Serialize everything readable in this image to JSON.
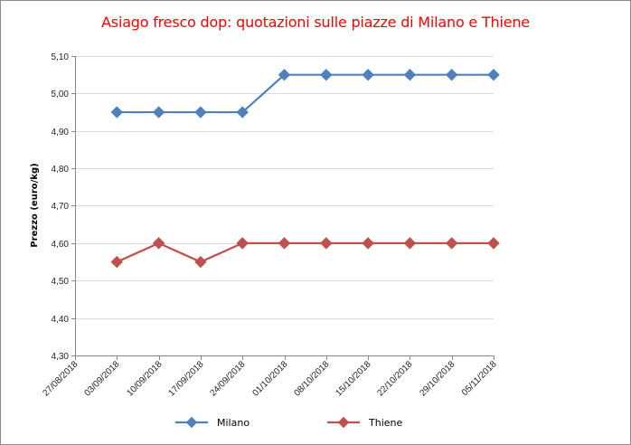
{
  "chart_data": {
    "type": "line",
    "title": "Asiago fresco dop: quotazioni sulle piazze di Milano e Thiene",
    "xlabel": "",
    "ylabel": "Prezzo (euro/kg)",
    "ylim": [
      4.3,
      5.1
    ],
    "y_ticks": [
      "4,30",
      "4,40",
      "4,50",
      "4,60",
      "4,70",
      "4,80",
      "4,90",
      "5,00",
      "5,10"
    ],
    "categories": [
      "27/08/2018",
      "03/09/2018",
      "10/09/2018",
      "17/09/2018",
      "24/09/2018",
      "01/10/2018",
      "08/10/2018",
      "15/10/2018",
      "22/10/2018",
      "29/10/2018",
      "05/11/2018"
    ],
    "grid": true,
    "legend_position": "bottom",
    "series": [
      {
        "name": "Milano",
        "color": "#4f81bd",
        "marker": "diamond",
        "values": [
          null,
          4.95,
          4.95,
          4.95,
          4.95,
          5.05,
          5.05,
          5.05,
          5.05,
          5.05,
          5.05
        ]
      },
      {
        "name": "Thiene",
        "color": "#c0504d",
        "marker": "diamond",
        "values": [
          null,
          4.55,
          4.6,
          4.55,
          4.6,
          4.6,
          4.6,
          4.6,
          4.6,
          4.6,
          4.6
        ]
      }
    ]
  }
}
